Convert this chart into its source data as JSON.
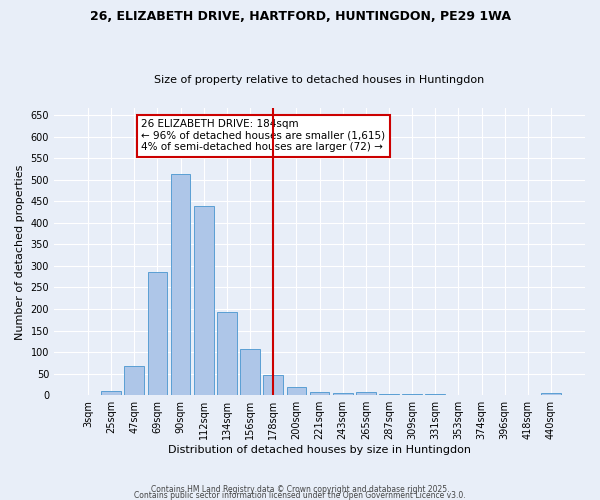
{
  "title1": "26, ELIZABETH DRIVE, HARTFORD, HUNTINGDON, PE29 1WA",
  "title2": "Size of property relative to detached houses in Huntingdon",
  "xlabel": "Distribution of detached houses by size in Huntingdon",
  "ylabel": "Number of detached properties",
  "categories": [
    "3sqm",
    "25sqm",
    "47sqm",
    "69sqm",
    "90sqm",
    "112sqm",
    "134sqm",
    "156sqm",
    "178sqm",
    "200sqm",
    "221sqm",
    "243sqm",
    "265sqm",
    "287sqm",
    "309sqm",
    "331sqm",
    "353sqm",
    "374sqm",
    "396sqm",
    "418sqm",
    "440sqm"
  ],
  "values": [
    0,
    10,
    68,
    285,
    513,
    440,
    192,
    108,
    47,
    20,
    8,
    5,
    7,
    3,
    3,
    2,
    1,
    1,
    0,
    0,
    5
  ],
  "bar_color": "#aec6e8",
  "bar_edge_color": "#5a9fd4",
  "vline_x_index": 8,
  "vline_color": "#cc0000",
  "annotation_text": "26 ELIZABETH DRIVE: 184sqm\n← 96% of detached houses are smaller (1,615)\n4% of semi-detached houses are larger (72) →",
  "annotation_box_color": "#ffffff",
  "annotation_box_edge": "#cc0000",
  "bg_color": "#e8eef8",
  "grid_color": "#ffffff",
  "ylim": [
    0,
    665
  ],
  "yticks": [
    0,
    50,
    100,
    150,
    200,
    250,
    300,
    350,
    400,
    450,
    500,
    550,
    600,
    650
  ],
  "footer1": "Contains HM Land Registry data © Crown copyright and database right 2025.",
  "footer2": "Contains public sector information licensed under the Open Government Licence v3.0.",
  "title1_fontsize": 9.0,
  "title2_fontsize": 8.0,
  "ylabel_fontsize": 8.0,
  "xlabel_fontsize": 8.0,
  "tick_fontsize": 7.0,
  "footer_fontsize": 5.5,
  "annotation_fontsize": 7.5
}
